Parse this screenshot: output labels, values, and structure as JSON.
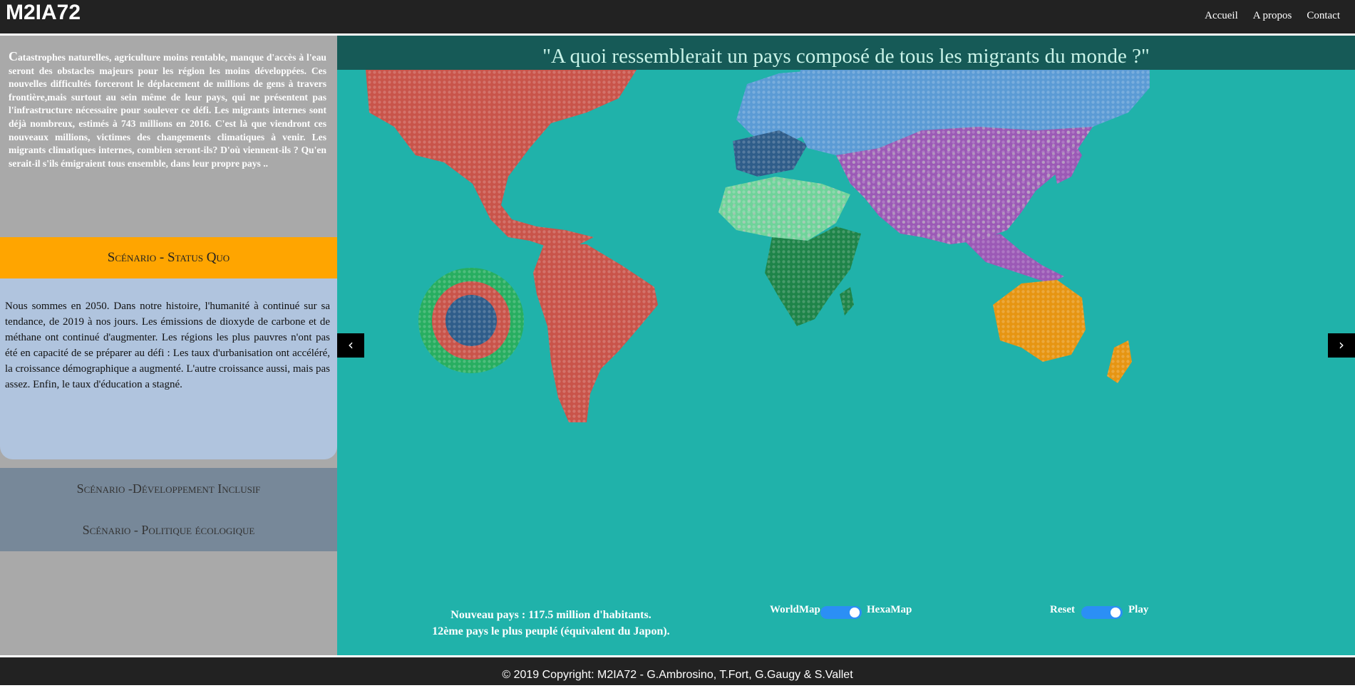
{
  "navbar": {
    "brand": "M2IA72",
    "links": [
      "Accueil",
      "A propos",
      "Contact"
    ]
  },
  "sidebar": {
    "intro": "Catastrophes naturelles, agriculture moins rentable, manque d'accès à l'eau seront des obstacles majeurs pour les région les moins développées. Ces nouvelles difficultés forceront le déplacement de millions de gens à travers frontière,mais surtout au sein même de leur pays, qui ne présentent pas l'infrastructure nécessaire pour soulever ce défi. Les migrants internes sont déjà nombreux, estimés à 743 millions en 2016. C'est là que viendront ces nouveaux millions, victimes des changements climatiques à venir. Les migrants climatiques internes, combien seront-ils? D'où viennent-ils ? Qu'en serait-il s'ils émigraient tous ensemble, dans leur propre pays ..",
    "active_scenario": {
      "title": "Scénario - Status Quo",
      "text": "Nous sommes en 2050. Dans notre histoire, l'humanité à continué sur sa tendance, de 2019 à nos jours. Les émissions de dioxyde de carbone et de méthane ont continué d'augmenter. Les régions les plus pauvres n'ont pas été en capacité de se préparer au défi : Les taux d'urbanisation ont accéléré, la croissance démographique a augmenté. L'autre croissance aussi, mais pas assez. Enfin, le taux d'éducation a stagné."
    },
    "other_scenarios": [
      "Scénario -Développement Inclusif",
      "Scénario - Politique écologique"
    ]
  },
  "map": {
    "title": "\"A quoi ressemblerait un pays composé de tous les migrants du monde ?\"",
    "prev_icon": "‹",
    "next_icon": "›",
    "info_line1": "Nouveau pays : 117.5 million d'habitants.",
    "info_line2": "12ème pays le plus peuplé (équivalent du Japon).",
    "toggle1_left": "WorldMap",
    "toggle1_right": "HexaMap",
    "toggle2_left": "Reset",
    "toggle2_right": "Play",
    "colors": {
      "ocean": "#20b2aa",
      "americas": "#c9544a",
      "europe_north": "#5b9bd5",
      "europe_west": "#2f5d8a",
      "asia": "#9b59b6",
      "africa_north": "#6fd39a",
      "africa_central": "#1e8449",
      "oceania": "#e69512",
      "hexamap_ring": "#27ae60"
    }
  },
  "footer": {
    "copyright": "© 2019 Copyright: M2IA72 - G.Ambrosino, T.Fort, G.Gaugy & S.Vallet"
  }
}
